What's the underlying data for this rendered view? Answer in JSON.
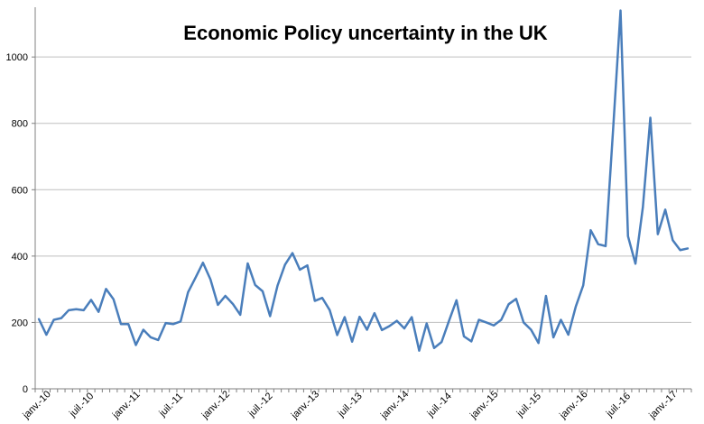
{
  "chart_data": {
    "type": "line",
    "title": "Economic Policy uncertainty in the UK",
    "xlabel": "",
    "ylabel": "",
    "ylim": [
      0,
      1150
    ],
    "yticks": [
      0,
      200,
      400,
      600,
      800,
      1000
    ],
    "grid": true,
    "legend": "none",
    "colors": {
      "series": "#4a7ebb",
      "grid": "#bfbfbf",
      "axis": "#808080"
    },
    "x_tick_labels": [
      {
        "label": "janv.-10",
        "month_index": 0
      },
      {
        "label": "juil.-10",
        "month_index": 6
      },
      {
        "label": "janv.-11",
        "month_index": 12
      },
      {
        "label": "juil.-11",
        "month_index": 18
      },
      {
        "label": "janv.-12",
        "month_index": 24
      },
      {
        "label": "juil.-12",
        "month_index": 30
      },
      {
        "label": "janv.-13",
        "month_index": 36
      },
      {
        "label": "juil.-13",
        "month_index": 42
      },
      {
        "label": "janv.-14",
        "month_index": 48
      },
      {
        "label": "juil.-14",
        "month_index": 54
      },
      {
        "label": "janv.-15",
        "month_index": 60
      },
      {
        "label": "juil.-15",
        "month_index": 66
      },
      {
        "label": "janv.-16",
        "month_index": 72
      },
      {
        "label": "juil.-16",
        "month_index": 78
      },
      {
        "label": "janv.-17",
        "month_index": 84
      }
    ],
    "series": [
      {
        "values": [
          210,
          163,
          208,
          213,
          237,
          240,
          237,
          268,
          232,
          301,
          270,
          195,
          195,
          132,
          178,
          155,
          147,
          198,
          195,
          203,
          291,
          335,
          380,
          330,
          253,
          280,
          256,
          223,
          378,
          313,
          294,
          219,
          311,
          374,
          409,
          359,
          372,
          265,
          274,
          237,
          162,
          216,
          142,
          217,
          178,
          228,
          177,
          189,
          205,
          182,
          216,
          115,
          197,
          123,
          141,
          205,
          267,
          158,
          143,
          208,
          200,
          191,
          208,
          255,
          271,
          200,
          178,
          138,
          280,
          155,
          208,
          163,
          248,
          312,
          478,
          436,
          430,
          780,
          1140,
          460,
          377,
          548,
          817,
          466,
          540,
          448,
          418,
          423
        ]
      }
    ]
  }
}
